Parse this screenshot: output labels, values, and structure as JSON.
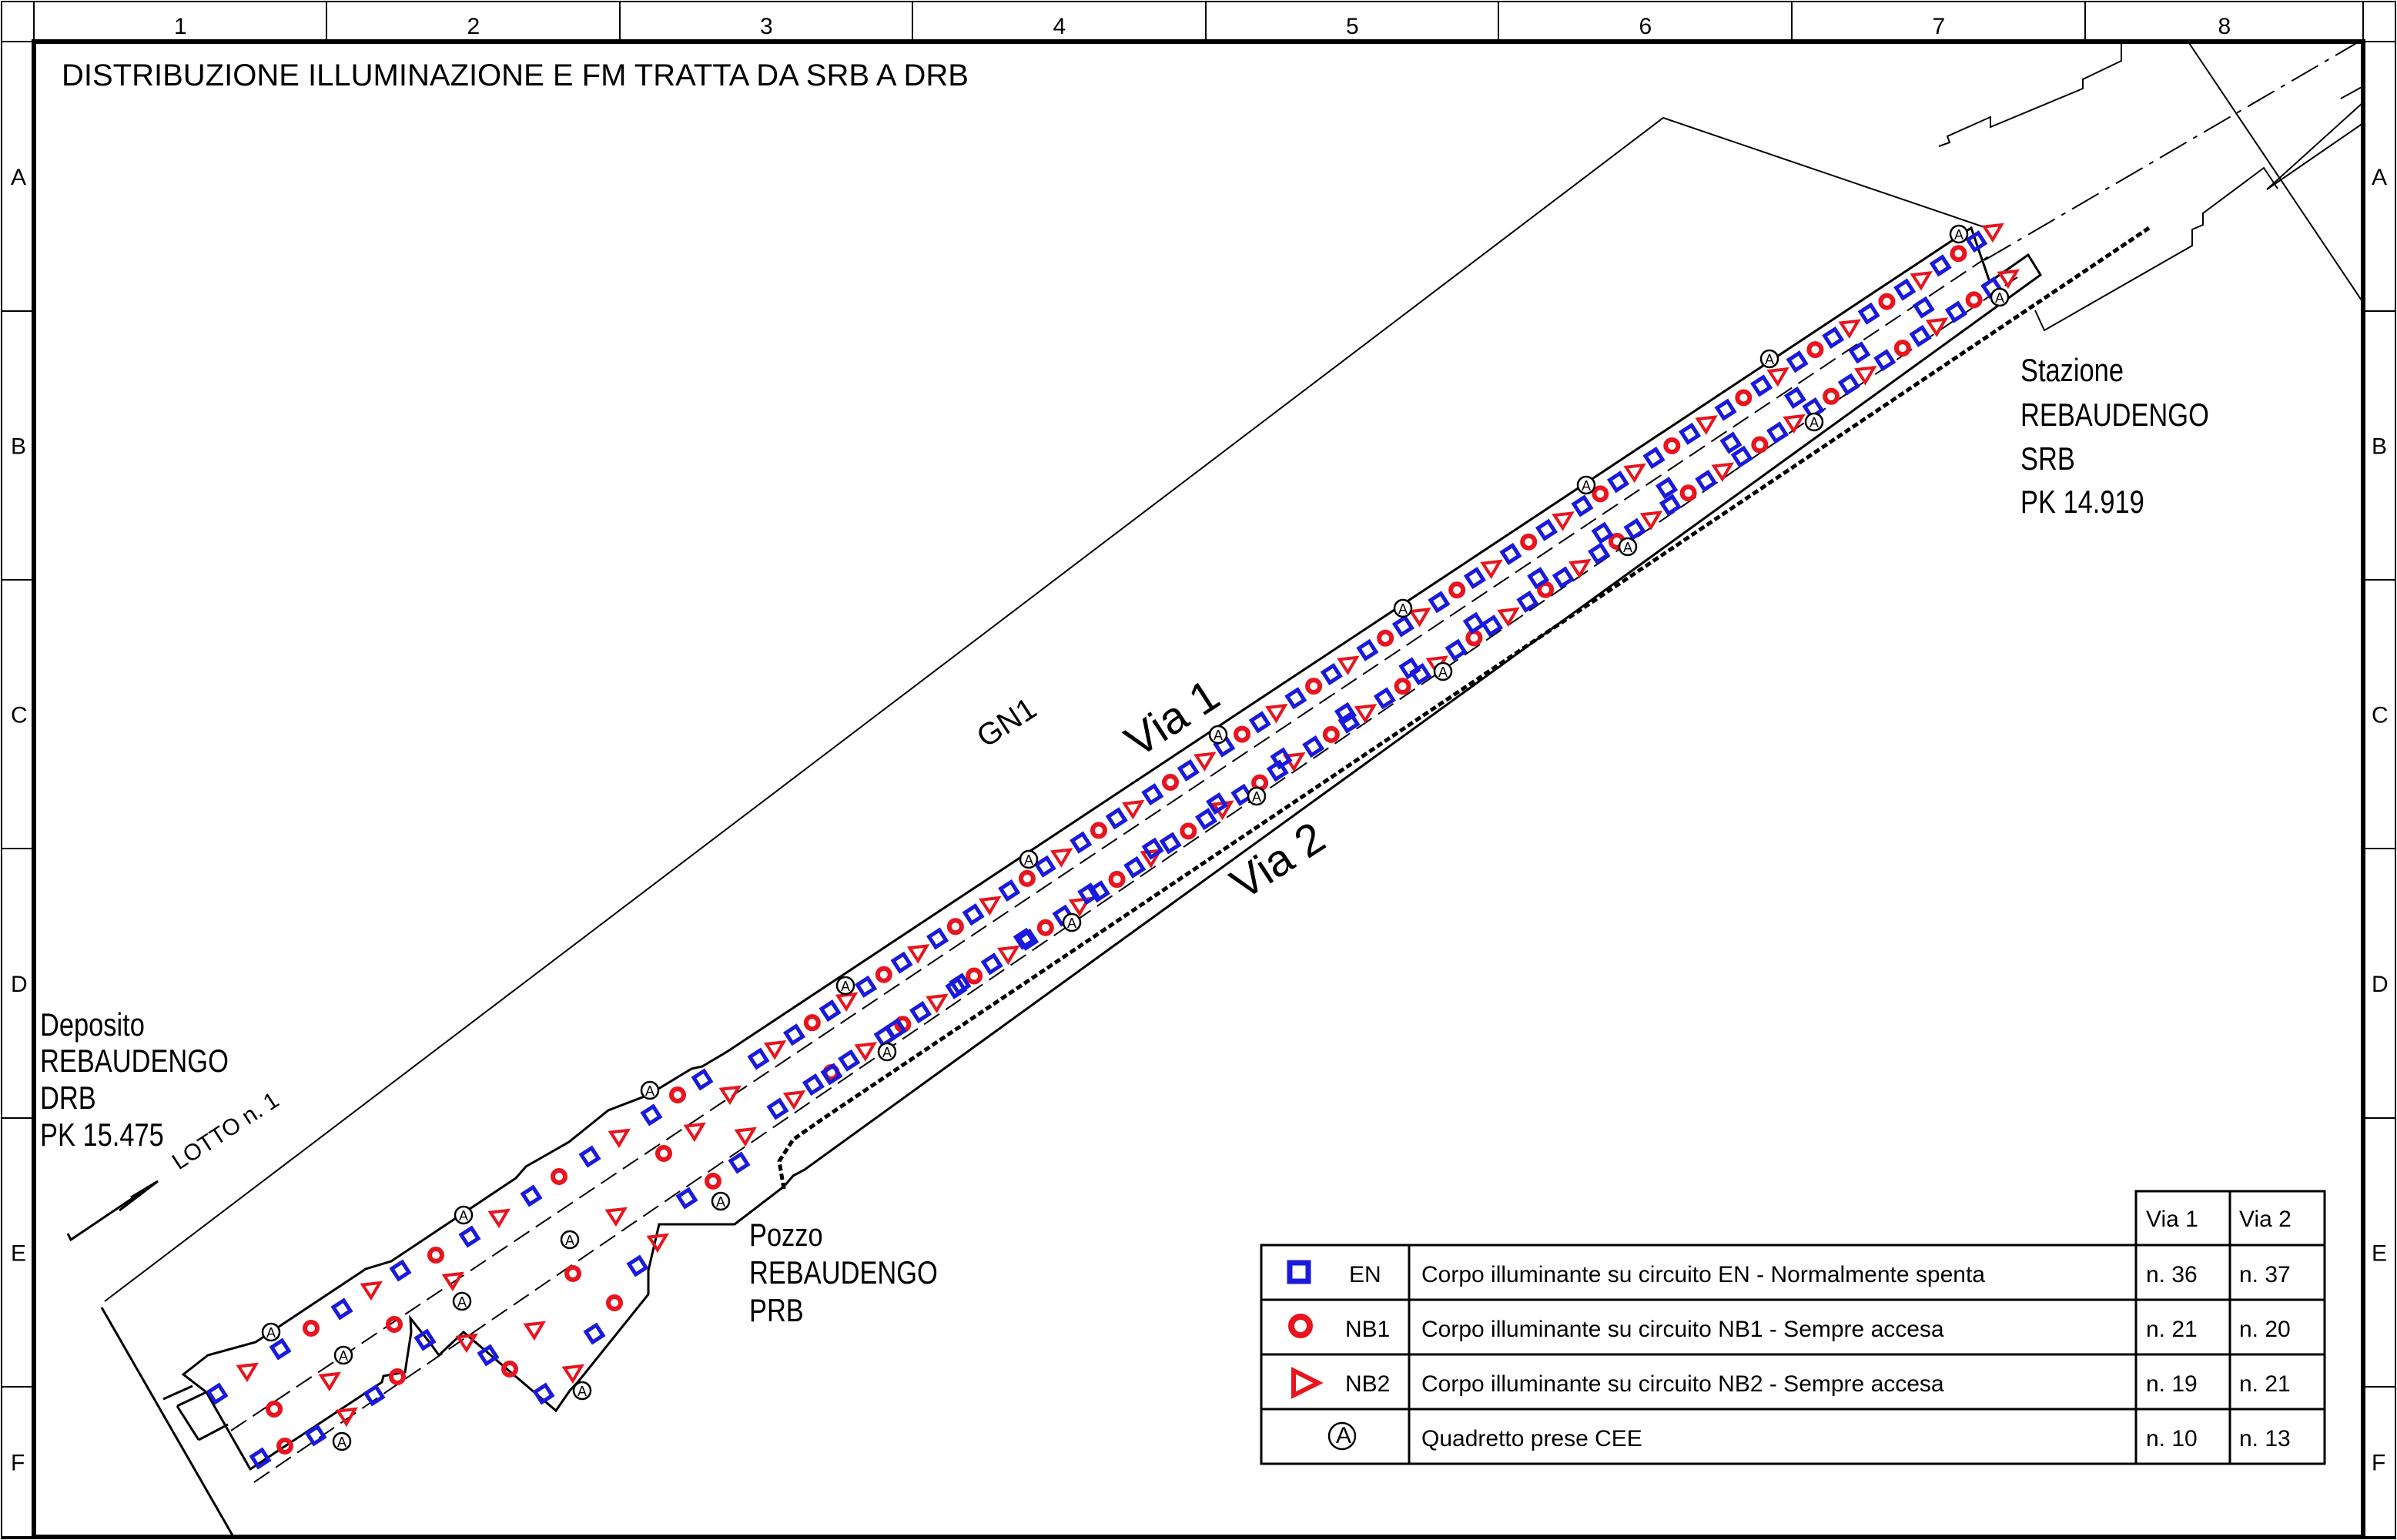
{
  "title": "DISTRIBUZIONE ILLUMINAZIONE E FM TRATTA DA SRB A DRB",
  "grid": {
    "columns": [
      "1",
      "2",
      "3",
      "4",
      "5",
      "6",
      "7",
      "8"
    ],
    "rows": [
      "A",
      "B",
      "C",
      "D",
      "E",
      "F"
    ]
  },
  "labels": {
    "gn1": "GN1",
    "via1": "Via 1",
    "via2": "Via 2",
    "lotto": "LOTTO n. 1",
    "deposito": [
      "Deposito",
      "REBAUDENGO",
      "DRB",
      "PK 15.475"
    ],
    "pozzo": [
      "Pozzo",
      "REBAUDENGO",
      "PRB"
    ],
    "stazione": [
      "Stazione",
      "REBAUDENGO",
      "SRB",
      "PK 14.919"
    ]
  },
  "legend": {
    "headers": [
      "Via 1",
      "Via 2"
    ],
    "rows": [
      {
        "symbol": "square-icon",
        "code": "EN",
        "description": "Corpo illuminante su circuito EN - Normalmente spenta",
        "via1": "n. 36",
        "via2": "n. 37"
      },
      {
        "symbol": "circle-icon",
        "code": "NB1",
        "description": "Corpo illuminante su circuito NB1 - Sempre accesa",
        "via1": "n. 21",
        "via2": "n. 20"
      },
      {
        "symbol": "triangle-icon",
        "code": "NB2",
        "description": "Corpo illuminante su circuito NB2 - Sempre accesa",
        "via1": "n. 19",
        "via2": "n. 21"
      },
      {
        "symbol": "a-circle-icon",
        "code": "",
        "description": "Quadretto prese CEE",
        "via1": "n. 10",
        "via2": "n. 13"
      }
    ]
  },
  "colors": {
    "en": "#1a1adc",
    "nb": "#e8141e",
    "line": "#000000"
  },
  "fixtures": {
    "a_symbol_text": "A",
    "via1_en": 36,
    "via1_nb1": 21,
    "via1_nb2": 19,
    "via1_a": 10,
    "via2_en": 37,
    "via2_nb1": 20,
    "via2_nb2": 21,
    "via2_a": 13
  }
}
